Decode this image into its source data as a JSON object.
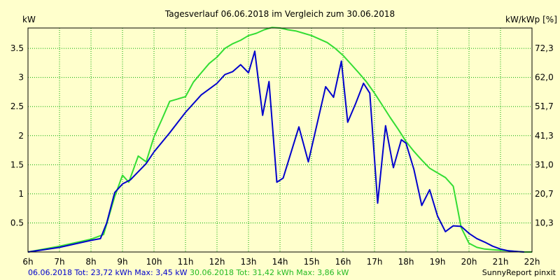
{
  "chart_data": {
    "type": "line",
    "title": "Tagesverlauf 06.06.2018 im Vergleich zum 30.06.2018",
    "ylabel_left": "kW",
    "ylabel_right": "kW/kWp [%]",
    "xlim": [
      6,
      22
    ],
    "ylim": [
      0,
      3.85
    ],
    "grid": true,
    "x_ticks": [
      "6h",
      "7h",
      "8h",
      "9h",
      "10h",
      "11h",
      "12h",
      "13h",
      "14h",
      "15h",
      "16h",
      "17h",
      "18h",
      "19h",
      "20h",
      "21h",
      "22h"
    ],
    "y_ticks_left": [
      {
        "value": 0.5,
        "label": "0.5"
      },
      {
        "value": 1,
        "label": "1"
      },
      {
        "value": 1.5,
        "label": "1.5"
      },
      {
        "value": 2,
        "label": "2"
      },
      {
        "value": 2.5,
        "label": "2.5"
      },
      {
        "value": 3,
        "label": "3"
      },
      {
        "value": 3.5,
        "label": "3.5"
      }
    ],
    "y_ticks_right": [
      {
        "value": 0.5,
        "label": "10,3"
      },
      {
        "value": 1,
        "label": "20,7"
      },
      {
        "value": 1.5,
        "label": "31,0"
      },
      {
        "value": 2,
        "label": "41,3"
      },
      {
        "value": 2.5,
        "label": "51,7"
      },
      {
        "value": 3,
        "label": "62,0"
      },
      {
        "value": 3.5,
        "label": "72,3"
      }
    ],
    "series": [
      {
        "color": "#0000cc",
        "points": [
          [
            6.0,
            0.0
          ],
          [
            6.5,
            0.04
          ],
          [
            7.0,
            0.08
          ],
          [
            7.5,
            0.14
          ],
          [
            8.0,
            0.2
          ],
          [
            8.3,
            0.23
          ],
          [
            8.5,
            0.5
          ],
          [
            8.75,
            1.02
          ],
          [
            9.0,
            1.17
          ],
          [
            9.25,
            1.24
          ],
          [
            9.5,
            1.38
          ],
          [
            9.75,
            1.52
          ],
          [
            10.0,
            1.72
          ],
          [
            10.5,
            2.05
          ],
          [
            11.0,
            2.4
          ],
          [
            11.5,
            2.7
          ],
          [
            12.0,
            2.9
          ],
          [
            12.25,
            3.05
          ],
          [
            12.5,
            3.1
          ],
          [
            12.75,
            3.22
          ],
          [
            13.0,
            3.08
          ],
          [
            13.2,
            3.45
          ],
          [
            13.45,
            2.35
          ],
          [
            13.65,
            2.93
          ],
          [
            13.9,
            1.2
          ],
          [
            14.1,
            1.27
          ],
          [
            14.6,
            2.15
          ],
          [
            14.9,
            1.55
          ],
          [
            15.45,
            2.84
          ],
          [
            15.7,
            2.66
          ],
          [
            15.95,
            3.28
          ],
          [
            16.15,
            2.23
          ],
          [
            16.4,
            2.55
          ],
          [
            16.65,
            2.9
          ],
          [
            16.85,
            2.73
          ],
          [
            17.1,
            0.84
          ],
          [
            17.35,
            2.17
          ],
          [
            17.6,
            1.45
          ],
          [
            17.85,
            1.93
          ],
          [
            18.0,
            1.87
          ],
          [
            18.25,
            1.42
          ],
          [
            18.5,
            0.8
          ],
          [
            18.75,
            1.07
          ],
          [
            19.0,
            0.62
          ],
          [
            19.25,
            0.35
          ],
          [
            19.5,
            0.45
          ],
          [
            19.75,
            0.44
          ],
          [
            20.0,
            0.32
          ],
          [
            20.25,
            0.23
          ],
          [
            20.5,
            0.17
          ],
          [
            20.75,
            0.1
          ],
          [
            21.0,
            0.05
          ],
          [
            21.25,
            0.02
          ],
          [
            21.5,
            0.01
          ],
          [
            21.75,
            0.0
          ]
        ]
      },
      {
        "color": "#33dd33",
        "points": [
          [
            6.0,
            0.0
          ],
          [
            6.5,
            0.05
          ],
          [
            7.0,
            0.1
          ],
          [
            7.5,
            0.16
          ],
          [
            8.0,
            0.22
          ],
          [
            8.4,
            0.3
          ],
          [
            8.75,
            0.95
          ],
          [
            9.0,
            1.32
          ],
          [
            9.2,
            1.2
          ],
          [
            9.5,
            1.65
          ],
          [
            9.75,
            1.55
          ],
          [
            10.0,
            1.98
          ],
          [
            10.25,
            2.28
          ],
          [
            10.5,
            2.59
          ],
          [
            10.75,
            2.63
          ],
          [
            11.0,
            2.67
          ],
          [
            11.25,
            2.92
          ],
          [
            11.5,
            3.08
          ],
          [
            11.75,
            3.24
          ],
          [
            12.0,
            3.35
          ],
          [
            12.25,
            3.5
          ],
          [
            12.5,
            3.58
          ],
          [
            12.75,
            3.64
          ],
          [
            13.0,
            3.72
          ],
          [
            13.25,
            3.76
          ],
          [
            13.5,
            3.82
          ],
          [
            13.75,
            3.86
          ],
          [
            14.0,
            3.85
          ],
          [
            14.25,
            3.82
          ],
          [
            14.5,
            3.8
          ],
          [
            14.75,
            3.76
          ],
          [
            15.0,
            3.72
          ],
          [
            15.25,
            3.66
          ],
          [
            15.5,
            3.6
          ],
          [
            15.75,
            3.5
          ],
          [
            16.0,
            3.38
          ],
          [
            16.25,
            3.23
          ],
          [
            16.5,
            3.08
          ],
          [
            16.75,
            2.92
          ],
          [
            17.0,
            2.73
          ],
          [
            17.25,
            2.52
          ],
          [
            17.5,
            2.31
          ],
          [
            17.75,
            2.11
          ],
          [
            18.0,
            1.9
          ],
          [
            18.25,
            1.73
          ],
          [
            18.5,
            1.58
          ],
          [
            18.75,
            1.44
          ],
          [
            19.0,
            1.36
          ],
          [
            19.25,
            1.28
          ],
          [
            19.5,
            1.13
          ],
          [
            19.6,
            0.85
          ],
          [
            19.75,
            0.42
          ],
          [
            20.0,
            0.15
          ],
          [
            20.25,
            0.08
          ],
          [
            20.5,
            0.05
          ],
          [
            20.75,
            0.04
          ],
          [
            21.0,
            0.03
          ],
          [
            21.25,
            0.02
          ],
          [
            21.5,
            0.01
          ],
          [
            21.75,
            0.0
          ],
          [
            22.0,
            0.0
          ]
        ]
      }
    ]
  },
  "footer": {
    "blue_text": "06.06.2018 Tot: 23,72 kWh Max: 3,45 kW",
    "green_text": "30.06.2018 Tot: 31,42 kWh Max: 3,86 kW",
    "brand": "SunnyReport pinxit"
  }
}
